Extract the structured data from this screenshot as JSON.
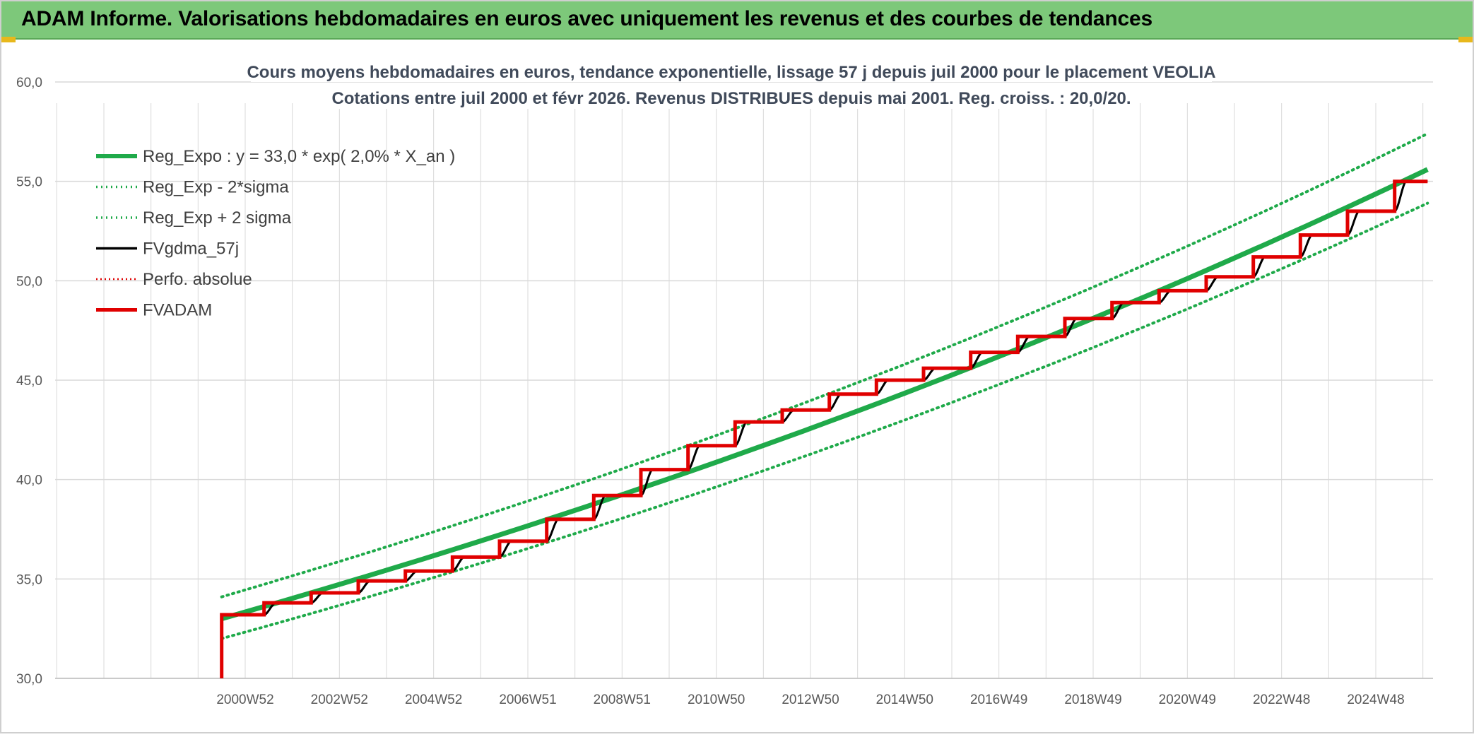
{
  "header": {
    "title": "ADAM Informe. Valorisations hebdomadaires en euros avec uniquement les revenus et des courbes de tendances"
  },
  "colors": {
    "banner": "#7dc87a",
    "reg_expo": "#1faa4a",
    "sigma": "#1faa4a",
    "fvgdma": "#000000",
    "perfo": "#e00000",
    "fvadam": "#e00000",
    "grid": "#d9d9d9",
    "axis_text": "#595959",
    "title_text": "#404a5a"
  },
  "chart_data": {
    "type": "line",
    "title": "Cours moyens hebdomadaires en euros, tendance exponentielle, lissage 57 j depuis juil 2000 pour le placement VEOLIA",
    "subtitle": "Cotations entre juil 2000 et févr 2026. Revenus DISTRIBUES depuis mai 2001. Reg. croiss. : 20,0/20.",
    "xlabel": "",
    "ylabel": "",
    "ylim": [
      30,
      60
    ],
    "y_ticks": [
      "60,0",
      "55,0",
      "50,0",
      "45,0",
      "40,0",
      "35,0",
      "30,0"
    ],
    "x_range_years": [
      2000.5,
      2026.1
    ],
    "x_tick_labels": [
      "2000W52",
      "2002W52",
      "2004W52",
      "2006W51",
      "2008W51",
      "2010W50",
      "2012W50",
      "2014W50",
      "2016W49",
      "2018W49",
      "2020W49",
      "2022W48",
      "2024W48"
    ],
    "x_tick_years": [
      2001,
      2003,
      2005,
      2007,
      2009,
      2011,
      2013,
      2015,
      2017,
      2019,
      2021,
      2023,
      2025
    ],
    "grid": true,
    "legend_position": "top-left",
    "legend": [
      {
        "key": "reg_expo",
        "label": "Reg_Expo : y = 33,0 * exp( 2,0% *  X_an )"
      },
      {
        "key": "sigma_low",
        "label": "Reg_Exp - 2*sigma"
      },
      {
        "key": "sigma_high",
        "label": "Reg_Exp + 2 sigma"
      },
      {
        "key": "fvgdma",
        "label": "FVgdma_57j"
      },
      {
        "key": "perfo",
        "label": "Perfo. absolue"
      },
      {
        "key": "fvadam",
        "label": "FVADAM"
      }
    ],
    "series": [
      {
        "name": "Reg_Expo : y = 33,0 * exp( 2,0% *  X_an )",
        "points": [
          [
            2000.5,
            33.0
          ],
          [
            2026.1,
            55.6
          ]
        ]
      },
      {
        "name": "Reg_Exp - 2*sigma",
        "points": [
          [
            2000.5,
            32.0
          ],
          [
            2026.1,
            53.9
          ]
        ]
      },
      {
        "name": "Reg_Exp + 2 sigma",
        "points": [
          [
            2000.5,
            34.1
          ],
          [
            2026.1,
            57.4
          ]
        ]
      },
      {
        "name": "FVADAM",
        "start_value": 30.0,
        "steps": [
          [
            2000.5,
            33.2
          ],
          [
            2001.4,
            33.8
          ],
          [
            2002.4,
            34.3
          ],
          [
            2003.4,
            34.9
          ],
          [
            2004.4,
            35.4
          ],
          [
            2005.4,
            36.1
          ],
          [
            2006.4,
            36.9
          ],
          [
            2007.4,
            38.0
          ],
          [
            2008.4,
            39.2
          ],
          [
            2009.4,
            40.5
          ],
          [
            2010.4,
            41.7
          ],
          [
            2011.4,
            42.9
          ],
          [
            2012.4,
            43.5
          ],
          [
            2013.4,
            44.3
          ],
          [
            2014.4,
            45.0
          ],
          [
            2015.4,
            45.6
          ],
          [
            2016.4,
            46.4
          ],
          [
            2017.4,
            47.2
          ],
          [
            2018.4,
            48.1
          ],
          [
            2019.4,
            48.9
          ],
          [
            2020.4,
            49.5
          ],
          [
            2021.4,
            50.2
          ],
          [
            2022.4,
            51.2
          ],
          [
            2023.4,
            52.3
          ],
          [
            2024.4,
            53.5
          ],
          [
            2025.4,
            55.0
          ]
        ],
        "end_year": 2026.1
      }
    ]
  }
}
